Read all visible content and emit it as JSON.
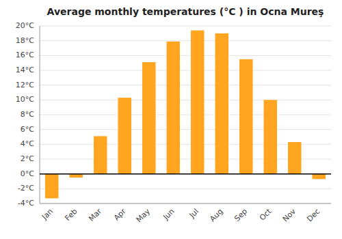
{
  "chart_data": {
    "type": "bar",
    "title": "Average monthly temperatures (°C ) in Ocna Mureş",
    "categories": [
      "Jan",
      "Feb",
      "Mar",
      "Apr",
      "May",
      "Jun",
      "Jul",
      "Aug",
      "Sep",
      "Oct",
      "Nov",
      "Dec"
    ],
    "values": [
      -3.3,
      -0.5,
      5.1,
      10.3,
      15.1,
      17.9,
      19.4,
      19.0,
      15.5,
      10.0,
      4.3,
      -0.7
    ],
    "color": "#FFA520",
    "ylim": [
      -4,
      20
    ],
    "yticks": [
      {
        "value": -4,
        "label": "-4°C"
      },
      {
        "value": -2,
        "label": "-2°C"
      },
      {
        "value": 0,
        "label": "0°C"
      },
      {
        "value": 2,
        "label": "2°C"
      },
      {
        "value": 4,
        "label": "4°C"
      },
      {
        "value": 6,
        "label": "6°C"
      },
      {
        "value": 8,
        "label": "8°C"
      },
      {
        "value": 10,
        "label": "10°C"
      },
      {
        "value": 12,
        "label": "12°C"
      },
      {
        "value": 14,
        "label": "14°C"
      },
      {
        "value": 16,
        "label": "16°C"
      },
      {
        "value": 18,
        "label": "18°C"
      },
      {
        "value": 20,
        "label": "20°C"
      }
    ],
    "grid": true
  }
}
